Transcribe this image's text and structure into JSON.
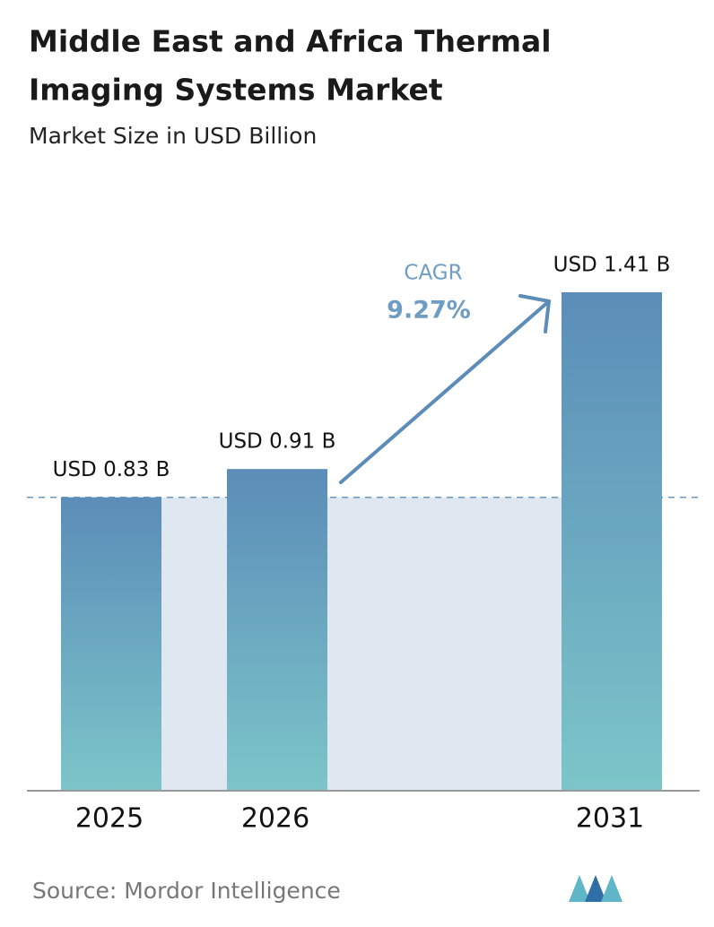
{
  "chart_data": {
    "type": "bar",
    "title": [
      "Middle East and Africa Thermal",
      "Imaging Systems Market"
    ],
    "subtitle": "Market Size in USD Billion",
    "categories": [
      "2025",
      "2026",
      "2031"
    ],
    "values": [
      0.83,
      0.91,
      1.41
    ],
    "value_labels": [
      "USD 0.83 B",
      "USD 0.91 B",
      "USD 1.41 B"
    ],
    "cagr_title": "CAGR",
    "cagr": {
      "value": 9.27,
      "label": "9.27%"
    },
    "color": [
      "#5b8db8",
      "#7cc5c9"
    ],
    "source": "Source: Mordor Intelligence"
  }
}
